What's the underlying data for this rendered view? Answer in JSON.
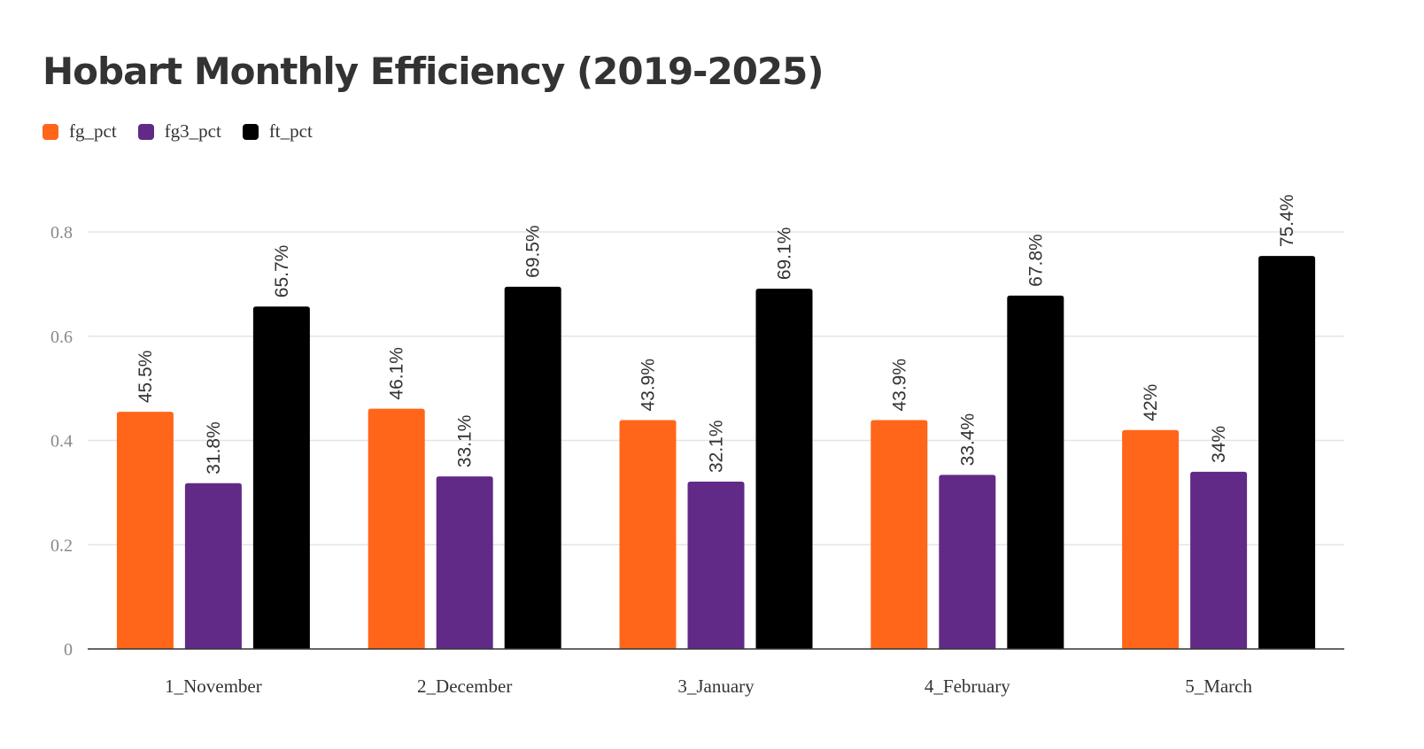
{
  "chart_data": {
    "type": "bar",
    "title": "Hobart Monthly Efficiency (2019-2025)",
    "xlabel": "",
    "ylabel": "",
    "categories": [
      "1_November",
      "2_December",
      "3_January",
      "4_February",
      "5_March"
    ],
    "series": [
      {
        "name": "fg_pct",
        "color": "#ff6619",
        "values": [
          0.455,
          0.461,
          0.439,
          0.439,
          0.42
        ],
        "labels": [
          "45.5%",
          "46.1%",
          "43.9%",
          "43.9%",
          "42%"
        ]
      },
      {
        "name": "fg3_pct",
        "color": "#612a87",
        "values": [
          0.318,
          0.331,
          0.321,
          0.334,
          0.34
        ],
        "labels": [
          "31.8%",
          "33.1%",
          "32.1%",
          "33.4%",
          "34%"
        ]
      },
      {
        "name": "ft_pct",
        "color": "#000000",
        "values": [
          0.657,
          0.695,
          0.691,
          0.678,
          0.754
        ],
        "labels": [
          "65.7%",
          "69.5%",
          "69.1%",
          "67.8%",
          "75.4%"
        ]
      }
    ],
    "yticks": [
      0,
      0.2,
      0.4,
      0.6,
      0.8
    ],
    "ytick_labels": [
      "0",
      "0.2",
      "0.4",
      "0.6",
      "0.8"
    ],
    "ylim": [
      0,
      0.8
    ],
    "grid": true,
    "legend": "top-left"
  }
}
